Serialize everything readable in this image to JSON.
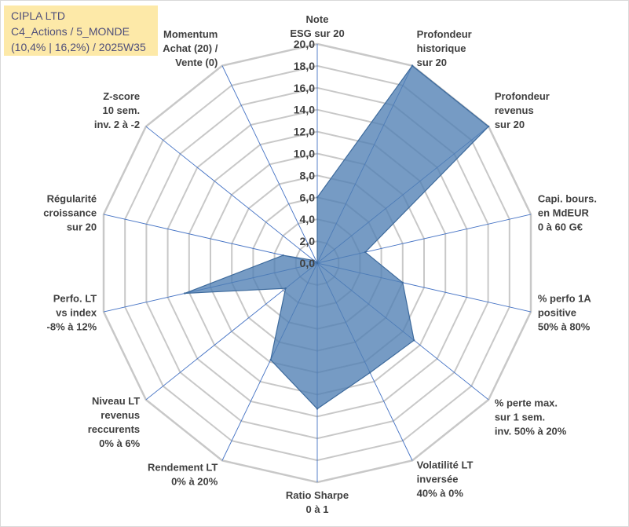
{
  "title": {
    "line1": "CIPLA LTD",
    "line2": "C4_Actions / 5_MONDE",
    "line3": "(10,4% | 16,2%) / 2025W35"
  },
  "chart_data": {
    "type": "radar",
    "rmin": 0,
    "rmax": 20,
    "ticks": [
      "0,0",
      "2,0",
      "4,0",
      "6,0",
      "8,0",
      "10,0",
      "12,0",
      "14,0",
      "16,0",
      "18,0",
      "20,0"
    ],
    "grid": true,
    "fill_color": "#4f7fb4",
    "grid_color": "#c8c8c8",
    "spoke_color": "#4472c4",
    "categories": [
      [
        "Note",
        "ESG sur 20"
      ],
      [
        "Profondeur",
        "historique",
        "sur 20"
      ],
      [
        "Profondeur",
        "revenus",
        "sur 20"
      ],
      [
        "Capi. bours.",
        "en MdEUR",
        "0 à 60 G€"
      ],
      [
        "% perfo 1A",
        "positive",
        "50% à 80%"
      ],
      [
        "% perte max.",
        "sur 1 sem.",
        "inv. 50% à 20%"
      ],
      [
        "Volatilité LT",
        "inversée",
        "40% à 0%"
      ],
      [
        "Ratio Sharpe",
        "0 à 1"
      ],
      [
        "Rendement LT",
        "0% à 20%"
      ],
      [
        "Niveau LT",
        "revenus",
        "reccurents",
        "0% à 6%"
      ],
      [
        "Perfo. LT",
        "vs index",
        "-8% à 12%"
      ],
      [
        "Régularité",
        "croissance",
        "sur 20"
      ],
      [
        "Z-score",
        "10 sem.",
        "inv. 2 à -2"
      ],
      [
        "Momentum",
        "Achat (20) /",
        "Vente (0)"
      ]
    ],
    "values": [
      6.0,
      20.0,
      20.0,
      4.5,
      8.0,
      11.3,
      11.1,
      13.3,
      9.8,
      3.7,
      12.4,
      3.2,
      0.4,
      0.0
    ]
  }
}
